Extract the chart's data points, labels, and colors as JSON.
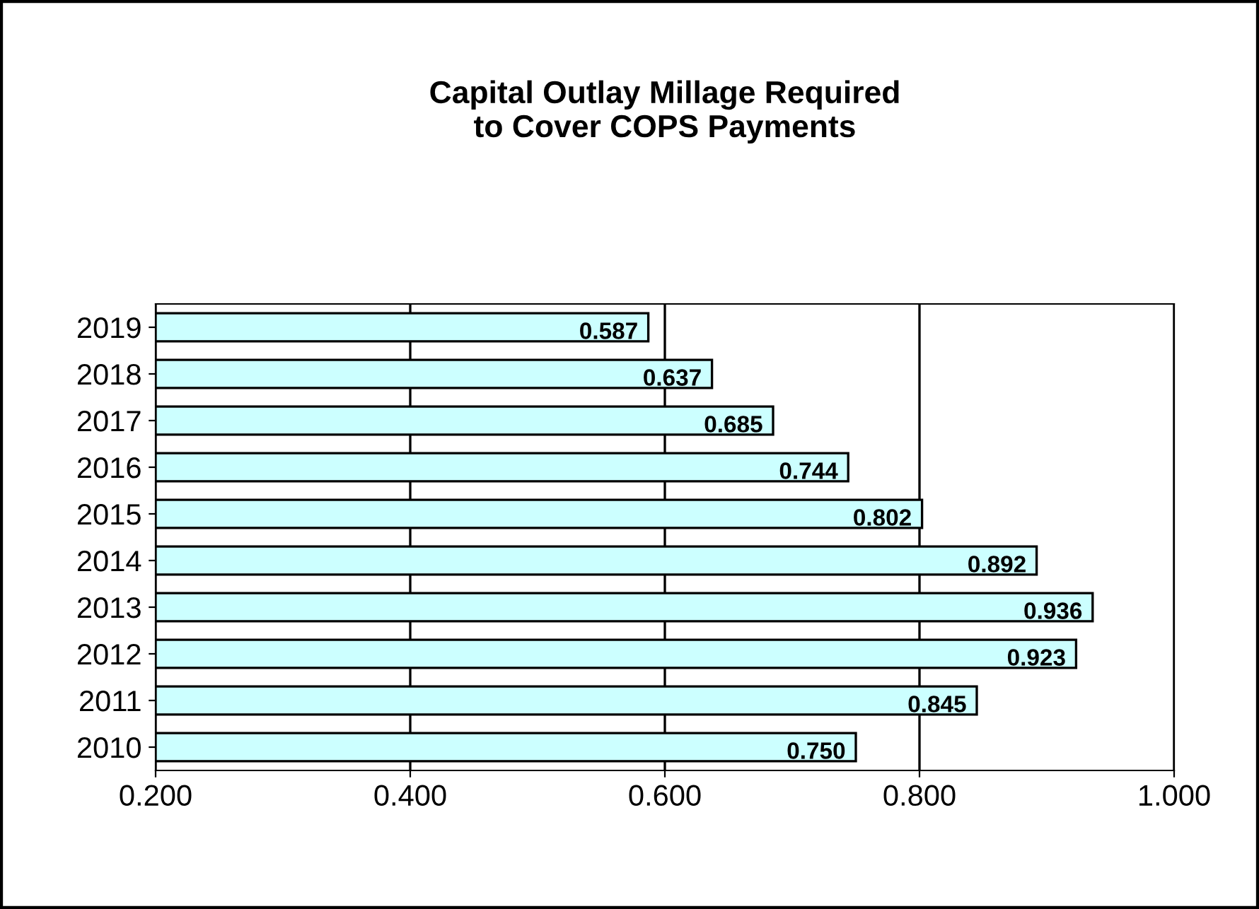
{
  "chart_data": {
    "type": "bar",
    "orientation": "horizontal",
    "title": "Capital Outlay Millage Required\nto Cover COPS Payments",
    "categories": [
      "2019",
      "2018",
      "2017",
      "2016",
      "2015",
      "2014",
      "2013",
      "2012",
      "2011",
      "2010"
    ],
    "values": [
      0.587,
      0.637,
      0.685,
      0.744,
      0.802,
      0.892,
      0.936,
      0.923,
      0.845,
      0.75
    ],
    "color": "#ccffff",
    "data_labels": true,
    "value_labels": [
      "0.587",
      "0.637",
      "0.685",
      "0.744",
      "0.802",
      "0.892",
      "0.936",
      "0.923",
      "0.845",
      "0.750"
    ],
    "xlim": [
      0.2,
      1.0
    ],
    "xticks": [
      {
        "value": 0.2,
        "label": "0.200"
      },
      {
        "value": 0.4,
        "label": "0.400"
      },
      {
        "value": 0.6,
        "label": "0.600"
      },
      {
        "value": 0.8,
        "label": "0.800"
      },
      {
        "value": 1.0,
        "label": "1.000"
      }
    ],
    "grid": "x",
    "legend": false
  }
}
